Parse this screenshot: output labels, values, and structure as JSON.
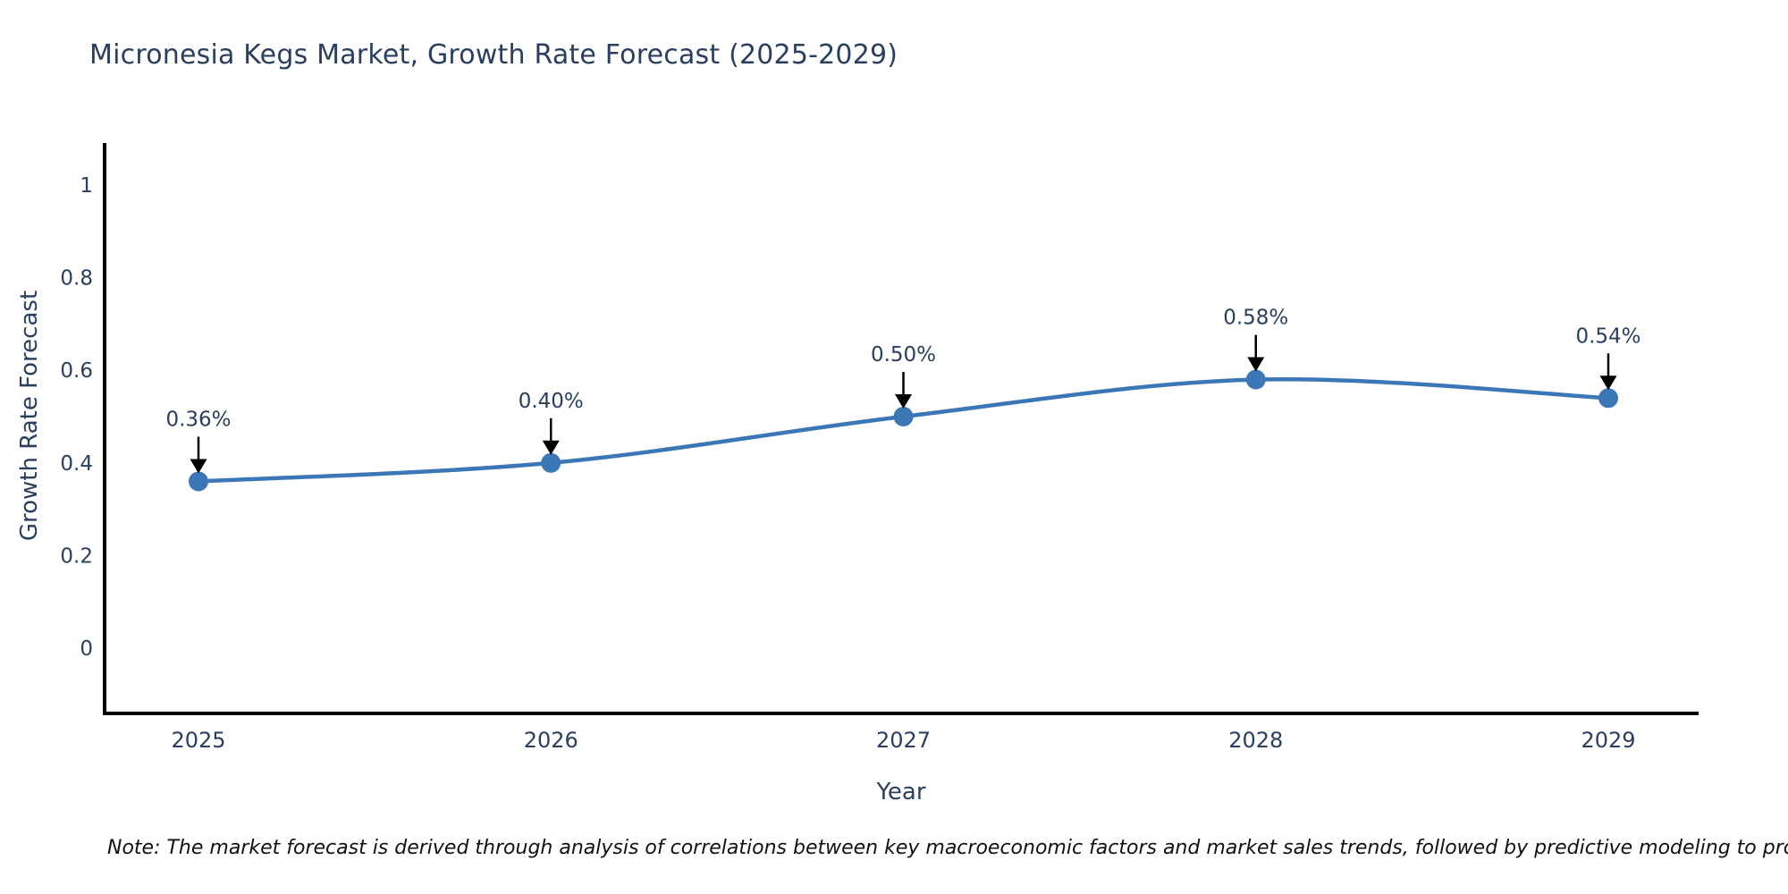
{
  "chart_data": {
    "type": "line",
    "title": "Micronesia Kegs Market, Growth Rate Forecast (2025-2029)",
    "xlabel": "Year",
    "ylabel": "Growth Rate Forecast",
    "x": [
      2025,
      2026,
      2027,
      2028,
      2029
    ],
    "x_tick_labels": [
      "2025",
      "2026",
      "2027",
      "2028",
      "2029"
    ],
    "series": [
      {
        "name": "Growth Rate Forecast",
        "values": [
          0.36,
          0.4,
          0.5,
          0.58,
          0.54
        ],
        "point_labels": [
          "0.36%",
          "0.40%",
          "0.50%",
          "0.58%",
          "0.54%"
        ]
      }
    ],
    "y_ticks": [
      0,
      0.2,
      0.4,
      0.6,
      0.8,
      1
    ],
    "y_tick_labels": [
      "0",
      "0.2",
      "0.4",
      "0.6",
      "0.8",
      "1"
    ],
    "ylim": [
      -0.145,
      1.09
    ],
    "grid": false,
    "legend_position": "none",
    "line_shape": "spline",
    "annotations_have_arrows": true
  },
  "colors": {
    "line": "#3b77b6",
    "marker": "#3b77b6",
    "axis_line": "#000000",
    "title_text": "#2a3f5f",
    "tick_text": "#2a3f5f",
    "annotation_text": "#2a3f5f",
    "arrow": "#000000",
    "note_text": "#111111",
    "background": "#ffffff"
  },
  "note": {
    "text": "Note: The market forecast is derived through analysis of correlations between key macroeconomic factors and market sales trends, followed by predictive modeling to project future sales"
  }
}
